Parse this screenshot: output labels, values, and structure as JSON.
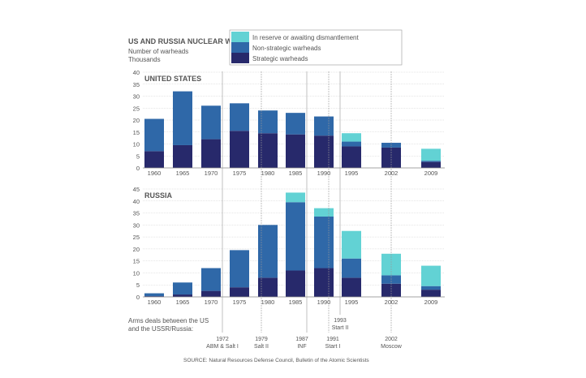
{
  "title": "US AND RUSSIA NUCLEAR WEAPONS",
  "ylabel_line1": "Number of warheads",
  "ylabel_line2": "Thousands",
  "source": "SOURCE: Natural Resources Defense Council, Bulletin of the Atomic Scientists",
  "deals_label_line1": "Arms deals between the US",
  "deals_label_line2": "and the USSR/Russia:",
  "colors": {
    "reserve": "#62d2d4",
    "nonstrategic": "#2f68a8",
    "strategic": "#27296b"
  },
  "chart_data": [
    {
      "type": "bar",
      "stacked": true,
      "title": "UNITED STATES",
      "categories": [
        "1960",
        "1965",
        "1970",
        "1975",
        "1980",
        "1985",
        "1990",
        "1995",
        "2002",
        "2009"
      ],
      "ylim": [
        0,
        40
      ],
      "yticks": [
        0,
        5,
        10,
        15,
        20,
        25,
        30,
        35,
        40
      ],
      "series": [
        {
          "name": "Strategic warheads",
          "values": [
            7,
            9.5,
            12,
            15.5,
            14.5,
            14,
            13.5,
            9,
            8.5,
            2.5
          ]
        },
        {
          "name": "Non-strategic warheads",
          "values": [
            13.5,
            22.5,
            14,
            11.5,
            9.5,
            9,
            8,
            2,
            2,
            0.5
          ]
        },
        {
          "name": "In reserve or awaiting dismantlement",
          "values": [
            0,
            0,
            0,
            0,
            0,
            0,
            0,
            3.5,
            0,
            5
          ]
        }
      ]
    },
    {
      "type": "bar",
      "stacked": true,
      "title": "RUSSIA",
      "categories": [
        "1960",
        "1965",
        "1970",
        "1975",
        "1980",
        "1985",
        "1990",
        "1995",
        "2002",
        "2009"
      ],
      "ylim": [
        0,
        45
      ],
      "yticks": [
        0,
        5,
        10,
        15,
        20,
        25,
        30,
        35,
        40,
        45
      ],
      "series": [
        {
          "name": "Strategic warheads",
          "values": [
            0.3,
            1,
            2.5,
            4,
            8,
            11,
            12,
            8,
            5.5,
            3
          ]
        },
        {
          "name": "Non-strategic warheads",
          "values": [
            1.2,
            5,
            9.5,
            15.5,
            22,
            28.5,
            21.5,
            8,
            3.5,
            1.5
          ]
        },
        {
          "name": "In reserve or awaiting dismantlement",
          "values": [
            0,
            0,
            0,
            0,
            0,
            4,
            3.5,
            11.5,
            9,
            8.5
          ]
        }
      ]
    }
  ],
  "legend": [
    "In reserve or awaiting dismantlement",
    "Non-strategic warheads",
    "Strategic warheads"
  ],
  "deals": [
    {
      "year": "1972",
      "name": "ABM & Salt I"
    },
    {
      "year": "1979",
      "name": "Salt II"
    },
    {
      "year": "1987",
      "name": "INF"
    },
    {
      "year": "1991",
      "name": "Start I"
    },
    {
      "year": "1993",
      "name": "Start II"
    },
    {
      "year": "2002",
      "name": "Moscow"
    }
  ]
}
